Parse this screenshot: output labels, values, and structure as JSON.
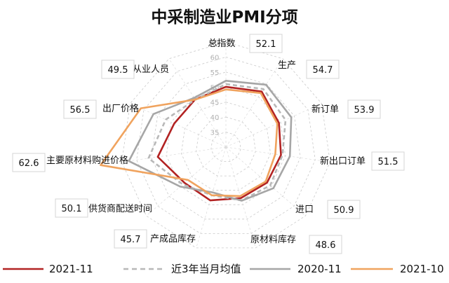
{
  "chart_data": {
    "type": "radar",
    "title": "中采制造业PMI分项",
    "r_ticks": [
      "35",
      "40",
      "45",
      "50",
      "55",
      "60",
      "65"
    ],
    "rlim": [
      30,
      65
    ],
    "categories": [
      "总指数",
      "生产",
      "新订单",
      "新出口订单",
      "进口",
      "原材料库存",
      "产成品库存",
      "供货商配送时间",
      "主要原材料购进价格",
      "出厂价格",
      "从业人员"
    ],
    "category_values": [
      "52.1",
      "54.7",
      "53.9",
      "51.5",
      "50.9",
      "48.6",
      "45.7",
      "50.1",
      "62.6",
      "56.5",
      "49.5"
    ],
    "series": [
      {
        "name": "2021-11",
        "color": "#b22222",
        "dash": "solid",
        "values": [
          50.1,
          52.0,
          49.4,
          48.5,
          48.1,
          47.7,
          48.5,
          48.2,
          52.9,
          48.9,
          48.9
        ]
      },
      {
        "name": "近3年当月均值",
        "color": "#b8b8b8",
        "dash": "dashed",
        "values": [
          51.0,
          53.0,
          51.8,
          49.0,
          49.5,
          48.5,
          46.7,
          49.0,
          56.0,
          52.0,
          48.8
        ]
      },
      {
        "name": "2020-11",
        "color": "#a6a6a6",
        "dash": "solid",
        "values": [
          52.1,
          54.7,
          53.9,
          51.5,
          50.9,
          48.6,
          45.7,
          50.1,
          62.6,
          56.5,
          49.5
        ]
      },
      {
        "name": "2021-10",
        "color": "#f0a35e",
        "dash": "solid",
        "values": [
          49.2,
          51.4,
          48.8,
          46.6,
          47.5,
          47.0,
          46.7,
          46.7,
          72.1,
          61.1,
          48.8
        ]
      }
    ]
  }
}
